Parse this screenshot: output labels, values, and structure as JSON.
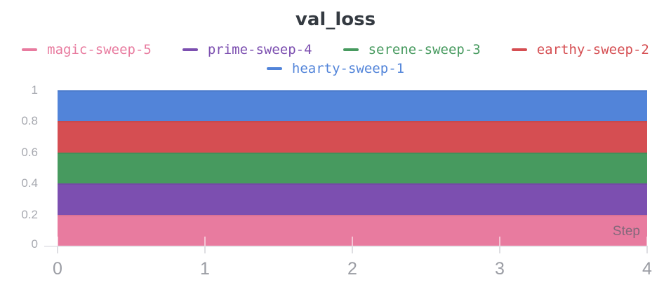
{
  "title": "val_loss",
  "legend": {
    "row1": [
      {
        "label": "magic-sweep-5",
        "color": "#E87B9F"
      },
      {
        "label": "prime-sweep-4",
        "color": "#7C4FB0"
      },
      {
        "label": "serene-sweep-3",
        "color": "#479A5F"
      },
      {
        "label": "earthy-sweep-2",
        "color": "#D54E52"
      }
    ],
    "row2": [
      {
        "label": "hearty-sweep-1",
        "color": "#5284D9"
      }
    ]
  },
  "axes": {
    "x": {
      "title": "Step",
      "tick_labels": [
        "0",
        "1",
        "2",
        "3",
        "4"
      ]
    },
    "y": {
      "tick_labels": [
        "1",
        "0.8",
        "0.6",
        "0.4",
        "0.2",
        "0"
      ]
    }
  },
  "chart_data": {
    "type": "area",
    "stacked": true,
    "title": "val_loss",
    "xlabel": "Step",
    "ylabel": "",
    "x": [
      0,
      1,
      2,
      3,
      4
    ],
    "xlim": [
      0,
      4
    ],
    "ylim": [
      0,
      1
    ],
    "x_ticks": [
      0,
      1,
      2,
      3,
      4
    ],
    "y_ticks": [
      0,
      0.2,
      0.4,
      0.6,
      0.8,
      1
    ],
    "grid": false,
    "legend_position": "top",
    "series": [
      {
        "name": "magic-sweep-5",
        "color": "#E87B9F",
        "values": [
          0.2,
          0.2,
          0.2,
          0.2,
          0.2
        ],
        "band": [
          0.0,
          0.2
        ]
      },
      {
        "name": "prime-sweep-4",
        "color": "#7C4FB0",
        "values": [
          0.2,
          0.2,
          0.2,
          0.2,
          0.2
        ],
        "band": [
          0.2,
          0.4
        ]
      },
      {
        "name": "serene-sweep-3",
        "color": "#479A5F",
        "values": [
          0.2,
          0.2,
          0.2,
          0.2,
          0.2
        ],
        "band": [
          0.4,
          0.6
        ]
      },
      {
        "name": "earthy-sweep-2",
        "color": "#D54E52",
        "values": [
          0.2,
          0.2,
          0.2,
          0.2,
          0.2
        ],
        "band": [
          0.6,
          0.8
        ]
      },
      {
        "name": "hearty-sweep-1",
        "color": "#5284D9",
        "values": [
          0.2,
          0.2,
          0.2,
          0.2,
          0.2
        ],
        "band": [
          0.8,
          1.0
        ]
      }
    ]
  },
  "colors": {
    "title_text": "#343a41",
    "axis_line": "#e9e9ed",
    "x_tick_label": "#9b9da4",
    "y_tick_label": "#a7a9b0",
    "step_label": "rgba(93,97,110,0.72)"
  }
}
